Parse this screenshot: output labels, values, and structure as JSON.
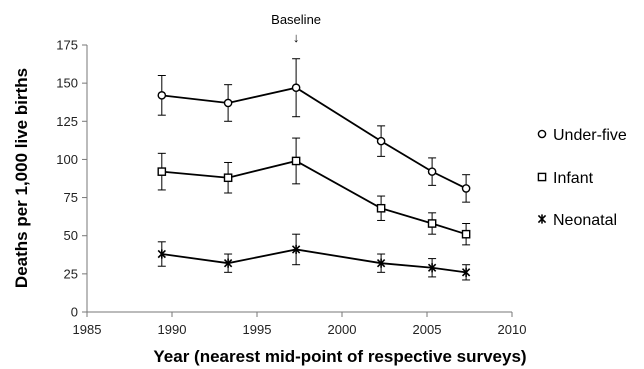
{
  "chart_data": {
    "type": "line",
    "title": "",
    "xlabel": "Year (nearest mid-point of respective surveys)",
    "ylabel": "Deaths per 1,000 live births",
    "xlim": [
      1985,
      2010
    ],
    "ylim": [
      0,
      175
    ],
    "x_ticks": [
      "1985",
      "1990",
      "1995",
      "2000",
      "2005",
      "2010"
    ],
    "y_ticks": [
      "0",
      "25",
      "50",
      "75",
      "100",
      "125",
      "150",
      "175"
    ],
    "grid": false,
    "legend_position": "right",
    "x": [
      1989.4,
      1993.3,
      1997.3,
      2002.3,
      2005.3,
      2007.3
    ],
    "series": [
      {
        "name": "Under-five",
        "marker": "circle",
        "values": [
          142,
          137,
          147,
          112,
          92,
          81
        ],
        "err": [
          13,
          12,
          19,
          10,
          9,
          9
        ]
      },
      {
        "name": "Infant",
        "marker": "square",
        "values": [
          92,
          88,
          99,
          68,
          58,
          51
        ],
        "err": [
          12,
          10,
          15,
          8,
          7,
          7
        ]
      },
      {
        "name": "Neonatal",
        "marker": "asterisk",
        "values": [
          38,
          32,
          41,
          32,
          29,
          26
        ],
        "err": [
          8,
          6,
          10,
          6,
          6,
          5
        ]
      }
    ],
    "annotation": {
      "text": "Baseline",
      "x": 1997.3,
      "arrow": "↓"
    }
  }
}
